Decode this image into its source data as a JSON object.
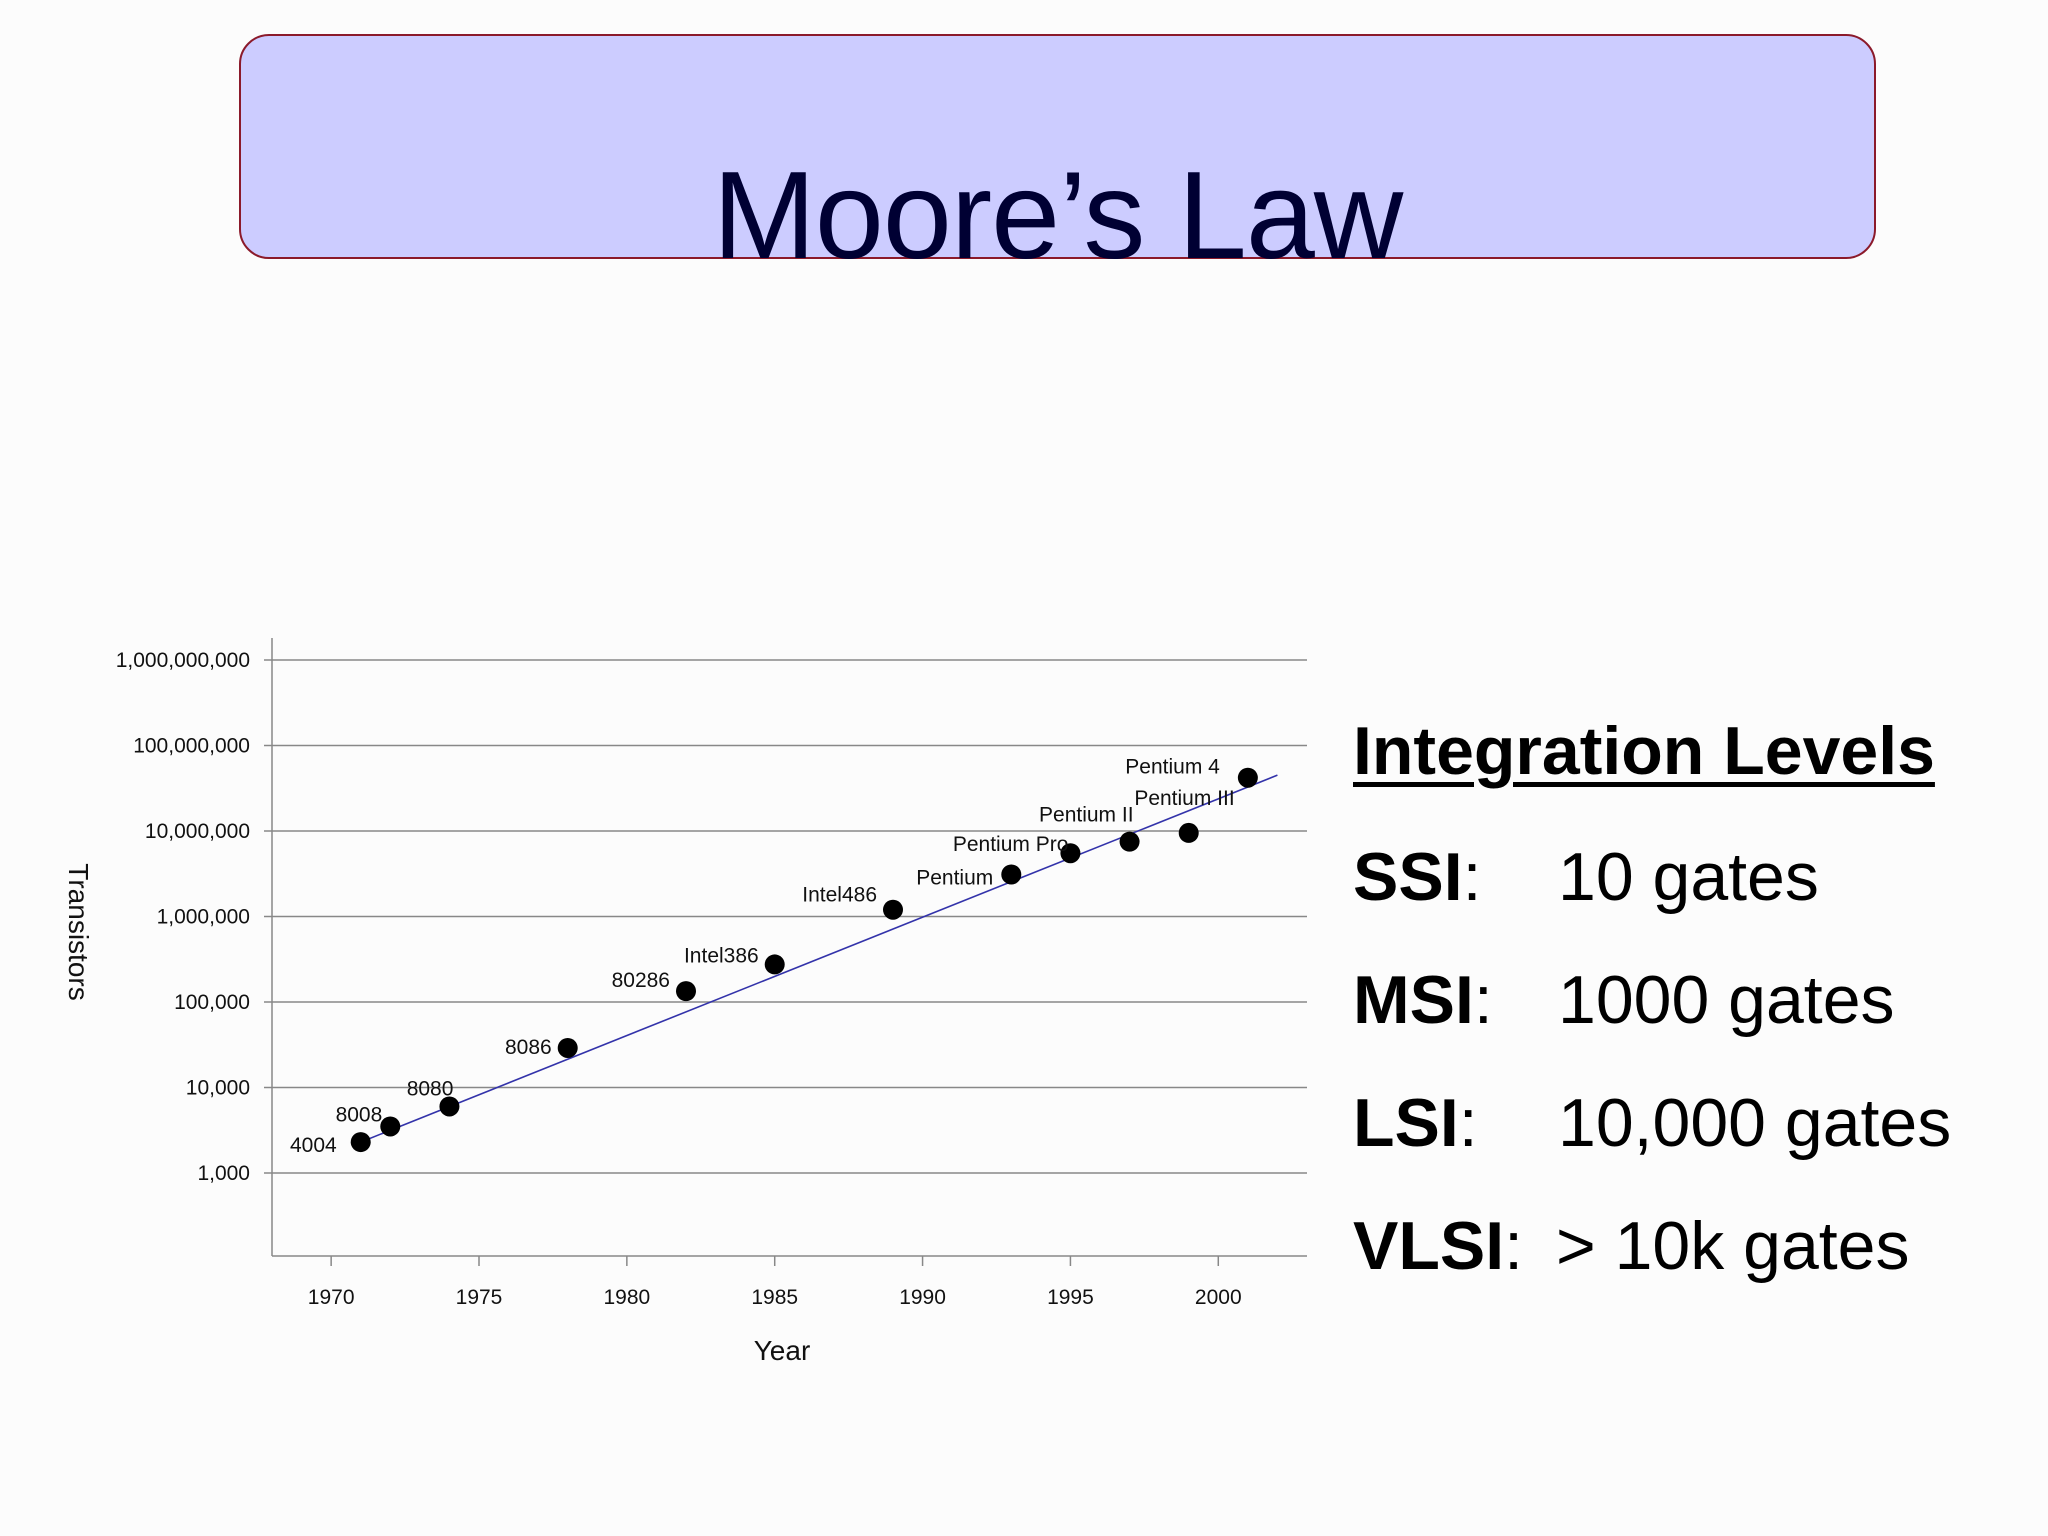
{
  "slide": {
    "title": "Moore’s Law",
    "title_box_color": "#ccccff",
    "title_border_color": "#8b1a2b",
    "title_text_color": "#000033"
  },
  "levels": {
    "heading": "Integration Levels",
    "rows": [
      {
        "abbr": "SSI",
        "sep": ":",
        "value": "10 gates"
      },
      {
        "abbr": "MSI",
        "sep": ":",
        "value": "1000 gates"
      },
      {
        "abbr": "LSI",
        "sep": ":",
        "value": "10,000 gates"
      },
      {
        "abbr": "VLSI",
        "sep": ":",
        "value": "> 10k gates"
      }
    ]
  },
  "chart_data": {
    "type": "scatter",
    "xlabel": "Year",
    "ylabel": "Transistors",
    "xlim": [
      1968,
      2003
    ],
    "x_ticks": [
      1970,
      1975,
      1980,
      1985,
      1990,
      1995,
      2000
    ],
    "y_scale": "log",
    "y_ticks": [
      1000,
      10000,
      100000,
      1000000,
      10000000,
      100000000,
      1000000000
    ],
    "y_tick_labels": [
      "1,000",
      "10,000",
      "100,000",
      "1,000,000",
      "10,000,000",
      "100,000,000",
      "1,000,000,000"
    ],
    "grid": "horizontal",
    "trendline": {
      "from": [
        1971,
        2300
      ],
      "to": [
        2002,
        45000000
      ],
      "color": "#3333aa"
    },
    "points": [
      {
        "label": "4004",
        "x": 1971,
        "y": 2300
      },
      {
        "label": "8008",
        "x": 1972,
        "y": 3500
      },
      {
        "label": "8080",
        "x": 1974,
        "y": 6000
      },
      {
        "label": "8086",
        "x": 1978,
        "y": 29000
      },
      {
        "label": "80286",
        "x": 1982,
        "y": 134000
      },
      {
        "label": "Intel386",
        "x": 1985,
        "y": 275000
      },
      {
        "label": "Intel486",
        "x": 1989,
        "y": 1200000
      },
      {
        "label": "Pentium",
        "x": 1993,
        "y": 3100000
      },
      {
        "label": "Pentium Pro",
        "x": 1995,
        "y": 5500000
      },
      {
        "label": "Pentium II",
        "x": 1997,
        "y": 7500000
      },
      {
        "label": "Pentium III",
        "x": 1999,
        "y": 9500000
      },
      {
        "label": "Pentium 4",
        "x": 2001,
        "y": 42000000
      }
    ]
  }
}
